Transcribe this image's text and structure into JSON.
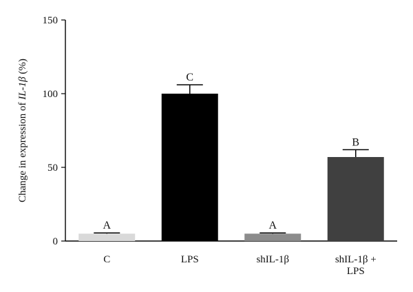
{
  "chart_data": {
    "type": "bar",
    "categories": [
      "C",
      "LPS",
      "shIL-1β",
      "shIL-1β + LPS"
    ],
    "category_lines": [
      [
        "C"
      ],
      [
        "LPS"
      ],
      [
        "shIL-1β"
      ],
      [
        "shIL-1β +",
        "LPS"
      ]
    ],
    "values": [
      5,
      100,
      5,
      57
    ],
    "errors": [
      0.5,
      6,
      0.5,
      5
    ],
    "significance": [
      "A",
      "C",
      "A",
      "B"
    ],
    "bar_colors": [
      "#d9d9d9",
      "#000000",
      "#8c8c8c",
      "#404040"
    ],
    "ylabel": "Change in expression of IL-1β (%)",
    "ylim": [
      0,
      150
    ],
    "yticks": [
      0,
      50,
      100,
      150
    ],
    "grid": false,
    "legend": "none"
  }
}
